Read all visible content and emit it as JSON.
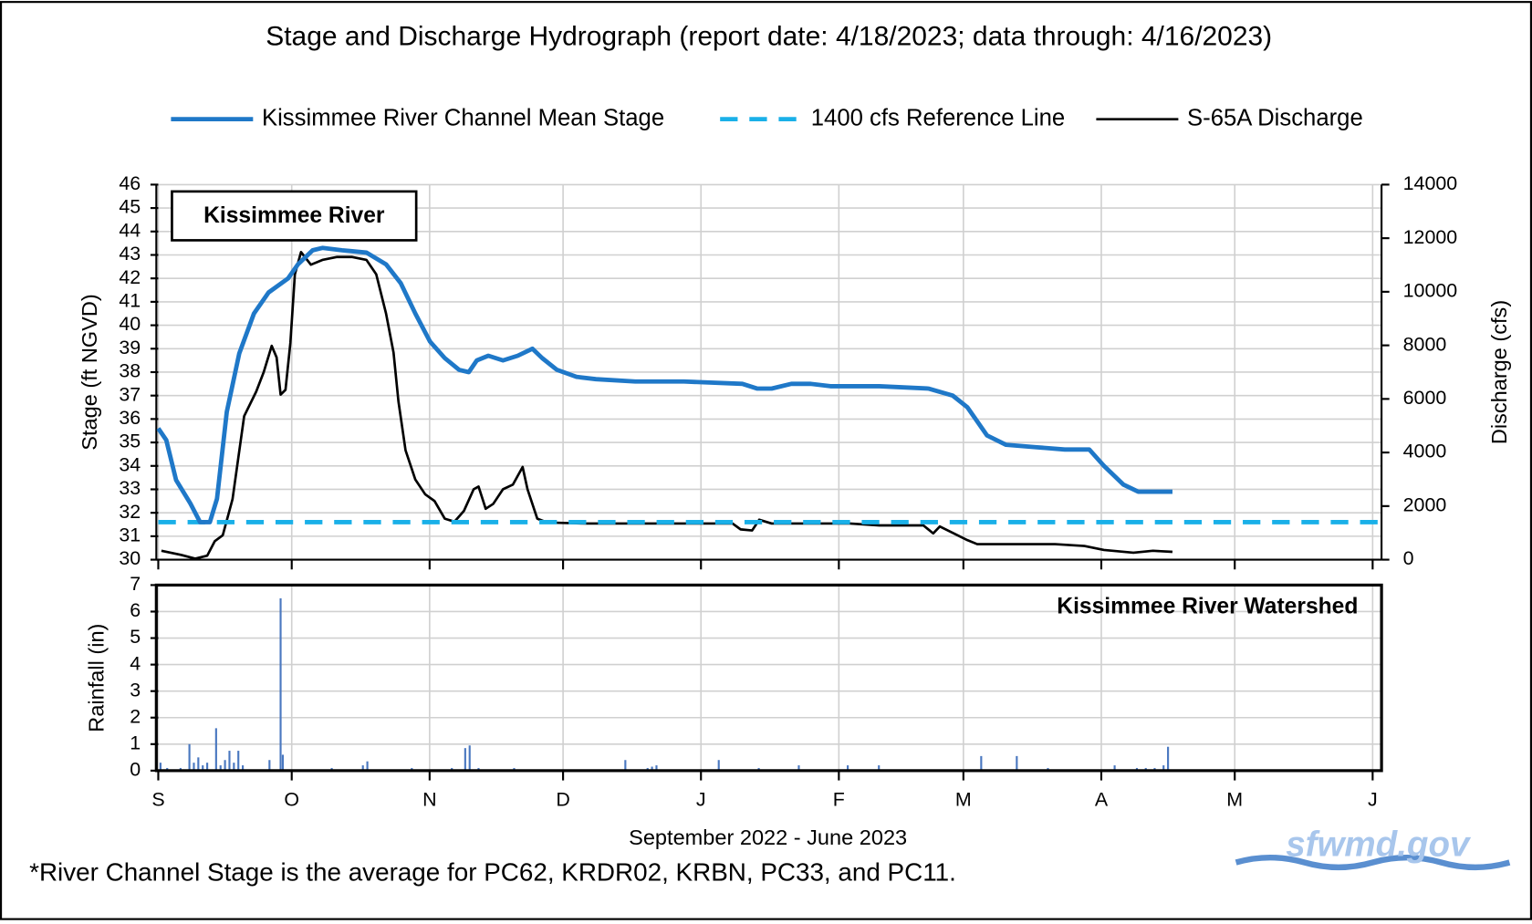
{
  "title": "Stage and Discharge Hydrograph  (report date: 4/18/2023; data through:  4/16/2023)",
  "footnote": "*River Channel Stage is the average for PC62, KRDR02, KRBN, PC33, and PC11.",
  "logo": "sfwmd.gov",
  "chart_data": [
    {
      "type": "line",
      "annotation": "Kissimmee  River",
      "ylabel": "Stage (ft NGVD)",
      "y2label": "Discharge (cfs)",
      "xlim": [
        0,
        275
      ],
      "ylim": [
        30,
        46
      ],
      "yticks": [
        30,
        31,
        32,
        33,
        34,
        35,
        36,
        37,
        38,
        39,
        40,
        41,
        42,
        43,
        44,
        45,
        46
      ],
      "y2lim": [
        0,
        14000
      ],
      "y2ticks": [
        0,
        2000,
        4000,
        6000,
        8000,
        10000,
        12000,
        14000
      ],
      "grid": true,
      "legend": "top",
      "series": [
        {
          "name": "Kissimmee River  Channel  Mean Stage",
          "color": "#1f78c8",
          "style": "solid",
          "x": [
            0,
            1.8,
            4,
            7.2,
            9.4,
            11.6,
            13.2,
            15.4,
            18.2,
            21.5,
            24.8,
            29.2,
            31.4,
            34.7,
            36.9,
            41.3,
            46.8,
            51.2,
            54.5,
            57.8,
            61.1,
            64.4,
            67.6,
            69.8,
            71.6,
            74.2,
            77.5,
            80.8,
            84.1,
            86.3,
            89.6,
            94,
            98.4,
            107.2,
            118.2,
            131.3,
            134.6,
            137.9,
            142.3,
            146.7,
            151.1,
            162.1,
            173.1,
            178.6,
            181.9,
            184.1,
            186.3,
            190.6,
            197.2,
            203.8,
            209.3,
            212.6,
            217,
            220.3,
            228
          ],
          "values": [
            35.6,
            35.1,
            33.4,
            32.4,
            31.6,
            31.6,
            32.6,
            36.3,
            38.8,
            40.5,
            41.4,
            42,
            42.6,
            43.2,
            43.3,
            43.2,
            43.1,
            42.6,
            41.8,
            40.5,
            39.3,
            38.6,
            38.1,
            38,
            38.5,
            38.7,
            38.5,
            38.7,
            39,
            38.6,
            38.1,
            37.8,
            37.7,
            37.6,
            37.6,
            37.5,
            37.3,
            37.3,
            37.5,
            37.5,
            37.4,
            37.4,
            37.3,
            37,
            36.5,
            35.9,
            35.3,
            34.9,
            34.8,
            34.7,
            34.7,
            34,
            33.2,
            32.9,
            32.9
          ]
        },
        {
          "name": "1400 cfs Reference Line",
          "color": "#1ab0e8",
          "style": "dashed",
          "axis": "y2",
          "x": [
            0,
            275
          ],
          "values": [
            1400,
            1400
          ]
        },
        {
          "name": "S-65A Discharge",
          "color": "#000000",
          "style": "solid",
          "axis": "y2",
          "x": [
            0.7,
            5.1,
            8.3,
            11,
            12.7,
            14.5,
            16.7,
            19.3,
            22,
            23.7,
            25.5,
            26.6,
            27.5,
            28.6,
            29.7,
            30.7,
            32.1,
            34.3,
            36.9,
            40.2,
            43.5,
            46.8,
            49,
            51.2,
            52.9,
            54,
            55.6,
            57.8,
            60,
            62.1,
            64.4,
            66.6,
            68.7,
            70.9,
            72,
            73.6,
            75.3,
            77.5,
            79.7,
            81.9,
            83,
            85.2,
            87.4,
            96.2,
            129.1,
            130.9,
            133.5,
            135.1,
            137.9,
            155.5,
            162.1,
            172,
            174.2,
            175.7,
            178.6,
            181.9,
            184.1,
            201.6,
            208.2,
            212.6,
            219.2,
            223.6,
            228
          ],
          "values": [
            330,
            180,
            40,
            150,
            690,
            910,
            2260,
            5360,
            6270,
            7000,
            7980,
            7550,
            6160,
            6340,
            8090,
            10650,
            11480,
            11010,
            11190,
            11300,
            11300,
            11190,
            10650,
            9190,
            7730,
            5910,
            4080,
            2990,
            2440,
            2190,
            1530,
            1420,
            1820,
            2630,
            2730,
            1900,
            2080,
            2630,
            2800,
            3460,
            2630,
            1530,
            1390,
            1350,
            1350,
            1130,
            1090,
            1490,
            1350,
            1350,
            1280,
            1280,
            980,
            1240,
            1000,
            730,
            580,
            580,
            510,
            360,
            260,
            330,
            290
          ]
        }
      ]
    },
    {
      "type": "bar",
      "annotation": "Kissimmee  River Watershed",
      "ylabel": "Rainfall (in)",
      "xlabel": "September 2022 - June 2023",
      "xlim": [
        0,
        275
      ],
      "ylim": [
        0,
        7
      ],
      "yticks": [
        0,
        1,
        2,
        3,
        4,
        5,
        6,
        7
      ],
      "grid": true,
      "color": "#4a78c0",
      "xticks": [
        {
          "value": 0,
          "label": "S"
        },
        {
          "value": 30,
          "label": "O"
        },
        {
          "value": 61,
          "label": "N"
        },
        {
          "value": 91,
          "label": "D"
        },
        {
          "value": 122,
          "label": "J"
        },
        {
          "value": 153,
          "label": "F"
        },
        {
          "value": 181,
          "label": "M"
        },
        {
          "value": 212,
          "label": "A"
        },
        {
          "value": 242,
          "label": "M"
        },
        {
          "value": 273,
          "label": "J"
        }
      ],
      "x": [
        0.5,
        2,
        5,
        7,
        8,
        9,
        10,
        11,
        13,
        14,
        15,
        16,
        17,
        18,
        19,
        25,
        27.5,
        28,
        39,
        46,
        47,
        57,
        66,
        69,
        70,
        72,
        80,
        105,
        110,
        111,
        112,
        126,
        135,
        144,
        155,
        162,
        185,
        193,
        200,
        215,
        220,
        222,
        224,
        226,
        227
      ],
      "values": [
        0.3,
        0.1,
        0.1,
        1,
        0.3,
        0.5,
        0.2,
        0.3,
        1.6,
        0.2,
        0.4,
        0.75,
        0.3,
        0.75,
        0.2,
        0.4,
        6.5,
        0.6,
        0.1,
        0.2,
        0.35,
        0.1,
        0.1,
        0.85,
        0.95,
        0.1,
        0.1,
        0.4,
        0.1,
        0.15,
        0.2,
        0.4,
        0.1,
        0.2,
        0.2,
        0.2,
        0.55,
        0.55,
        0.1,
        0.2,
        0.1,
        0.1,
        0.1,
        0.2,
        0.9
      ]
    }
  ]
}
